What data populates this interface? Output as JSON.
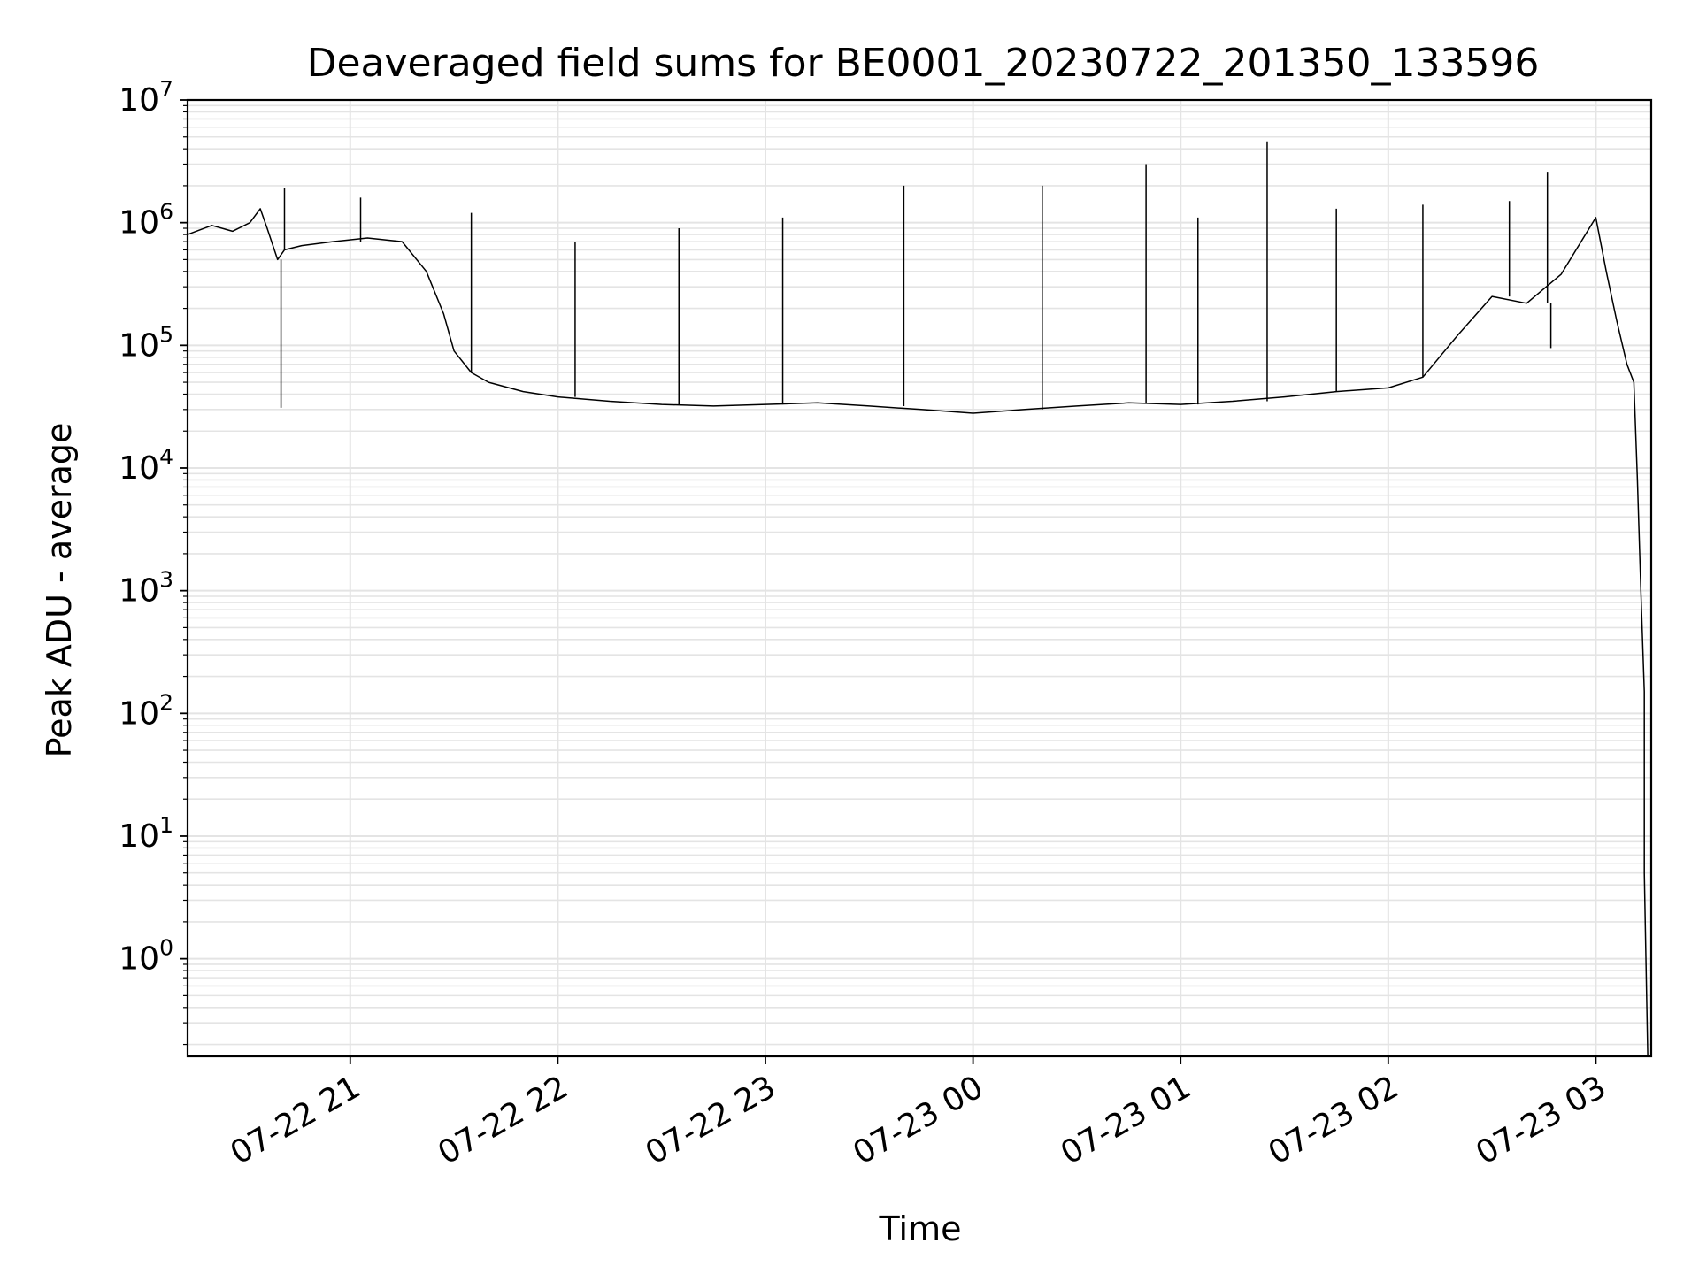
{
  "chart_data": {
    "type": "line",
    "title": "Deaveraged field sums for BE0001_20230722_201350_133596",
    "xlabel": "Time",
    "ylabel": "Peak ADU - average",
    "yscale": "log",
    "ylim": [
      0.16,
      10000000
    ],
    "xlim": [
      "2023-07-22 20:13",
      "2023-07-23 03:16"
    ],
    "grid": true,
    "line_color": "#000000",
    "x_ticks": [
      {
        "value": "2023-07-22 21:00",
        "label": "07-22 21"
      },
      {
        "value": "2023-07-22 22:00",
        "label": "07-22 22"
      },
      {
        "value": "2023-07-22 23:00",
        "label": "07-22 23"
      },
      {
        "value": "2023-07-23 00:00",
        "label": "07-23 00"
      },
      {
        "value": "2023-07-23 01:00",
        "label": "07-23 01"
      },
      {
        "value": "2023-07-23 02:00",
        "label": "07-23 02"
      },
      {
        "value": "2023-07-23 03:00",
        "label": "07-23 03"
      }
    ],
    "y_ticks": [
      {
        "base": "10",
        "exp": "0"
      },
      {
        "base": "10",
        "exp": "1"
      },
      {
        "base": "10",
        "exp": "2"
      },
      {
        "base": "10",
        "exp": "3"
      },
      {
        "base": "10",
        "exp": "4"
      },
      {
        "base": "10",
        "exp": "5"
      },
      {
        "base": "10",
        "exp": "6"
      },
      {
        "base": "10",
        "exp": "7"
      }
    ],
    "series": [
      {
        "x": [
          "2023-07-22 20:13",
          "2023-07-22 20:20",
          "2023-07-22 20:26",
          "2023-07-22 20:31",
          "2023-07-22 20:34",
          "2023-07-22 20:36",
          "2023-07-22 20:39",
          "2023-07-22 20:41",
          "2023-07-22 20:46",
          "2023-07-22 20:55",
          "2023-07-22 21:05",
          "2023-07-22 21:15",
          "2023-07-22 21:22",
          "2023-07-22 21:27",
          "2023-07-22 21:30",
          "2023-07-22 21:35",
          "2023-07-22 21:40",
          "2023-07-22 21:50",
          "2023-07-22 22:00",
          "2023-07-22 22:15",
          "2023-07-22 22:30",
          "2023-07-22 22:45",
          "2023-07-22 23:00",
          "2023-07-22 23:15",
          "2023-07-22 23:30",
          "2023-07-22 23:45",
          "2023-07-23 00:00",
          "2023-07-23 00:15",
          "2023-07-23 00:30",
          "2023-07-23 00:45",
          "2023-07-23 01:00",
          "2023-07-23 01:15",
          "2023-07-23 01:30",
          "2023-07-23 01:45",
          "2023-07-23 02:00",
          "2023-07-23 02:10",
          "2023-07-23 02:20",
          "2023-07-23 02:30",
          "2023-07-23 02:40",
          "2023-07-23 02:50",
          "2023-07-23 03:00",
          "2023-07-23 03:03",
          "2023-07-23 03:06",
          "2023-07-23 03:09",
          "2023-07-23 03:11",
          "2023-07-23 03:12",
          "2023-07-23 03:13",
          "2023-07-23 03:14",
          "2023-07-23 03:14",
          "2023-07-23 03:15"
        ],
        "y": [
          800000,
          950000,
          850000,
          1000000,
          1300000,
          900000,
          500000,
          600000,
          650000,
          700000,
          750000,
          700000,
          400000,
          180000,
          90000,
          60000,
          50000,
          42000,
          38000,
          35000,
          33000,
          32000,
          33000,
          34000,
          32000,
          30000,
          28000,
          30000,
          32000,
          34000,
          33000,
          35000,
          38000,
          42000,
          45000,
          55000,
          120000,
          250000,
          220000,
          380000,
          1100000,
          400000,
          160000,
          70000,
          50000,
          8000,
          1000,
          150,
          5,
          0.16
        ]
      }
    ],
    "spikes": [
      {
        "x": "2023-07-22 20:40",
        "y": 31000
      },
      {
        "x": "2023-07-22 20:41",
        "y": 1900000
      },
      {
        "x": "2023-07-22 21:03",
        "y": 1600000
      },
      {
        "x": "2023-07-22 21:35",
        "y": 1200000
      },
      {
        "x": "2023-07-22 22:05",
        "y": 700000
      },
      {
        "x": "2023-07-22 22:35",
        "y": 900000
      },
      {
        "x": "2023-07-22 23:05",
        "y": 1100000
      },
      {
        "x": "2023-07-22 23:40",
        "y": 2000000
      },
      {
        "x": "2023-07-23 00:20",
        "y": 2000000
      },
      {
        "x": "2023-07-23 00:50",
        "y": 3000000
      },
      {
        "x": "2023-07-23 01:05",
        "y": 1100000
      },
      {
        "x": "2023-07-23 01:25",
        "y": 4600000
      },
      {
        "x": "2023-07-23 01:45",
        "y": 1300000
      },
      {
        "x": "2023-07-23 02:10",
        "y": 1400000
      },
      {
        "x": "2023-07-23 02:35",
        "y": 1500000
      },
      {
        "x": "2023-07-23 02:46",
        "y": 2600000
      },
      {
        "x": "2023-07-23 02:47",
        "y": 95000
      }
    ]
  }
}
